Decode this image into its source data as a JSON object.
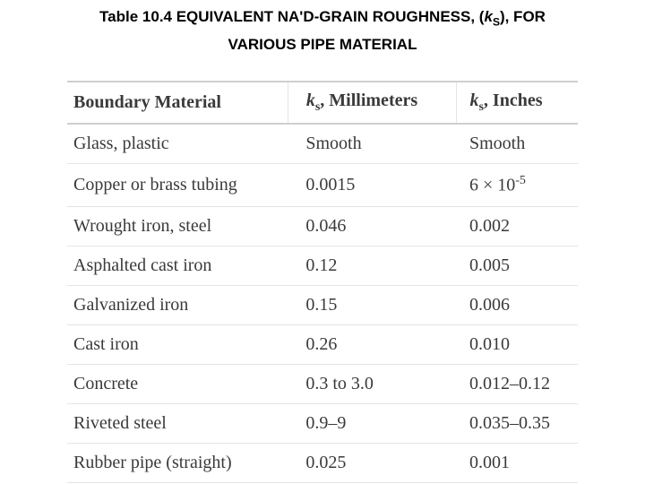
{
  "header": {
    "title_line1": {
      "before": "Table 10.4 EQUIVALENT NA'D-GRAIN ROUGHNESS, (",
      "symbol": "k",
      "sub": "S",
      "after": "), FOR"
    },
    "title_line2": "VARIOUS PIPE MATERIAL"
  },
  "table": {
    "columns": [
      {
        "text": "Boundary Material"
      },
      {
        "symbol": "k",
        "sub": "s",
        "text": ", Millimeters"
      },
      {
        "symbol": "k",
        "sub": "s",
        "text": ", Inches"
      }
    ],
    "rows": [
      [
        "Glass, plastic",
        "Smooth",
        "Smooth"
      ],
      [
        "Copper or brass tubing",
        "0.0015",
        {
          "base": "6 × 10",
          "sup": "-5"
        }
      ],
      [
        "Wrought iron, steel",
        "0.046",
        "0.002"
      ],
      [
        "Asphalted cast iron",
        "0.12",
        "0.005"
      ],
      [
        "Galvanized iron",
        "0.15",
        "0.006"
      ],
      [
        "Cast iron",
        "0.26",
        "0.010"
      ],
      [
        "Concrete",
        "0.3 to 3.0",
        "0.012–0.12"
      ],
      [
        "Riveted steel",
        "0.9–9",
        "0.035–0.35"
      ],
      [
        "Rubber pipe (straight)",
        "0.025",
        "0.001"
      ]
    ]
  }
}
